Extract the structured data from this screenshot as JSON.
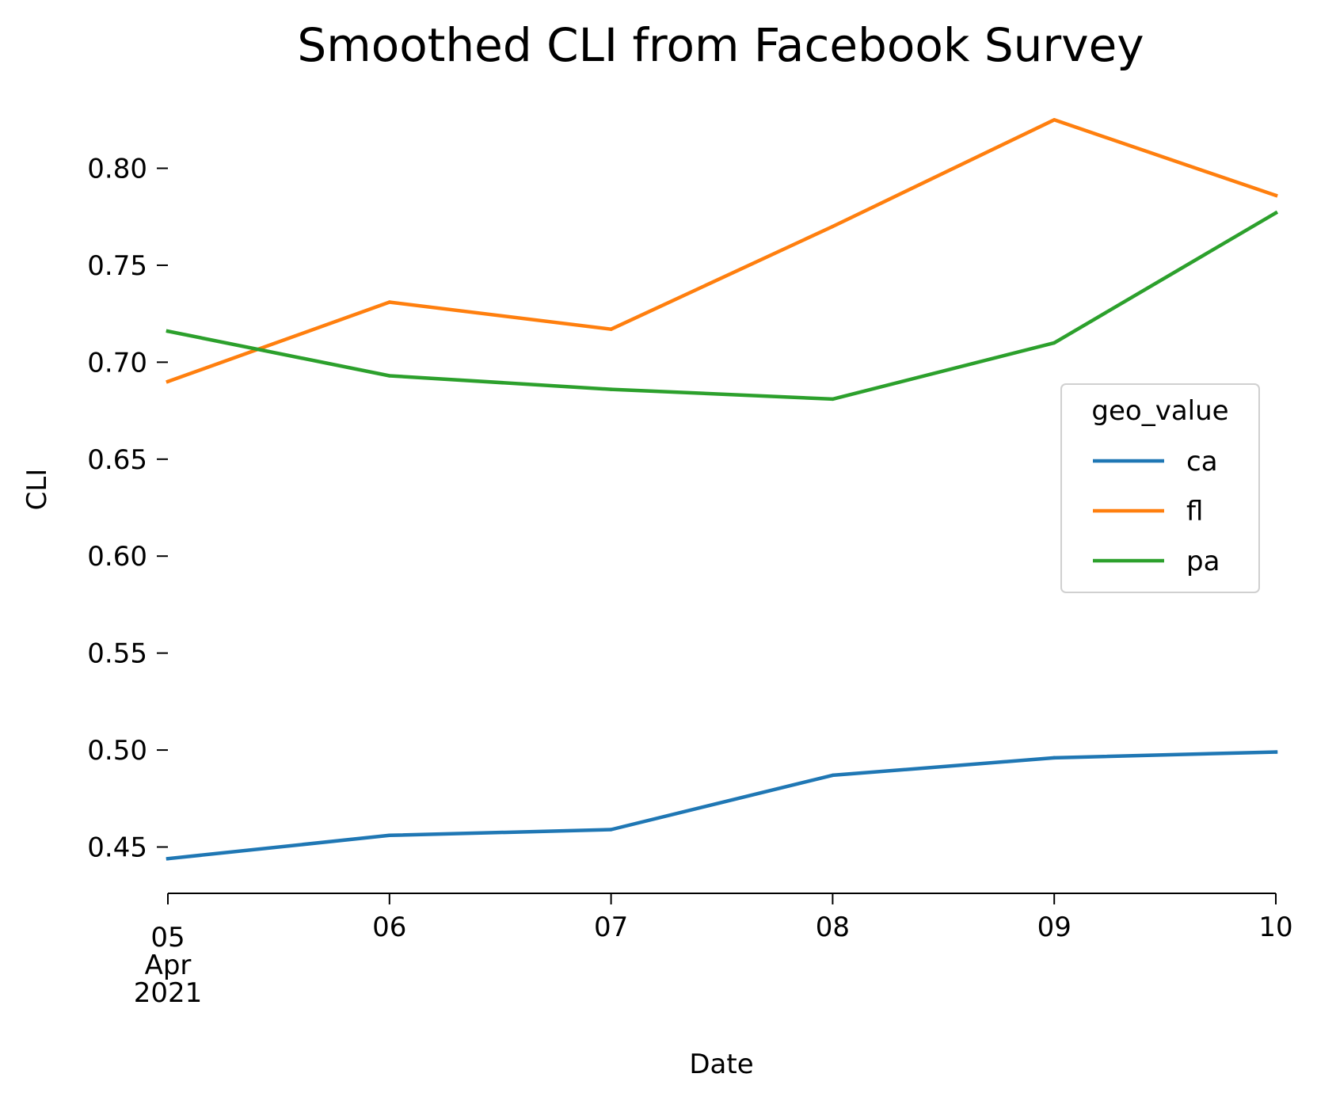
{
  "chart_data": {
    "type": "line",
    "title": "Smoothed CLI from Facebook Survey",
    "xlabel": "Date",
    "ylabel": "CLI",
    "x": [
      "2021-04-05",
      "2021-04-06",
      "2021-04-07",
      "2021-04-08",
      "2021-04-09",
      "2021-04-10"
    ],
    "x_tick_labels": [
      [
        "05",
        "Apr",
        "2021"
      ],
      [
        "06"
      ],
      [
        "07"
      ],
      [
        "08"
      ],
      [
        "09"
      ],
      [
        "10"
      ]
    ],
    "ylim": [
      0.425,
      0.835
    ],
    "y_ticks": [
      0.45,
      0.5,
      0.55,
      0.6,
      0.65,
      0.7,
      0.75,
      0.8
    ],
    "y_tick_labels": [
      "0.45",
      "0.50",
      "0.55",
      "0.60",
      "0.65",
      "0.70",
      "0.75",
      "0.80"
    ],
    "grid": false,
    "legend": {
      "title": "geo_value",
      "placement": "center-right"
    },
    "series": [
      {
        "name": "ca",
        "color": "#1f77b4",
        "values": [
          0.444,
          0.456,
          0.459,
          0.487,
          0.496,
          0.499
        ]
      },
      {
        "name": "fl",
        "color": "#ff7f0e",
        "values": [
          0.69,
          0.731,
          0.717,
          0.77,
          0.825,
          0.786
        ]
      },
      {
        "name": "pa",
        "color": "#2ca02c",
        "values": [
          0.716,
          0.693,
          0.686,
          0.681,
          0.71,
          0.777
        ]
      }
    ]
  }
}
